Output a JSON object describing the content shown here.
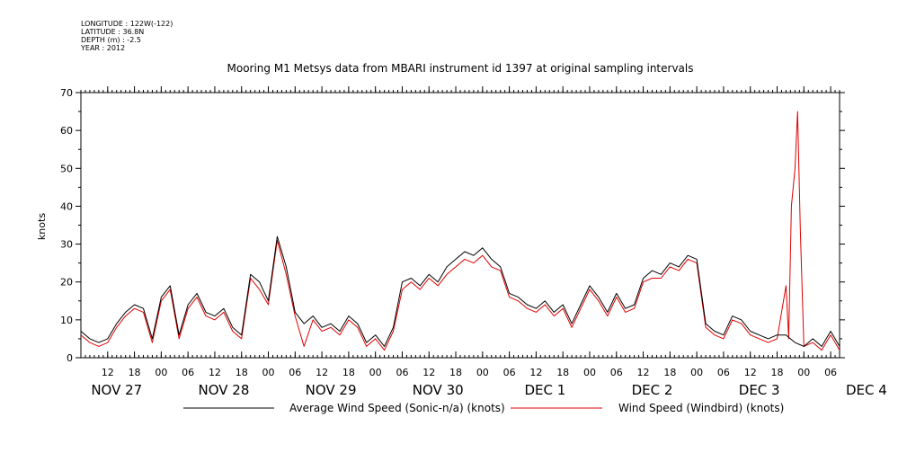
{
  "header": {
    "longitude": "LONGITUDE : 122W(-122)",
    "latitude": "LATITUDE : 36.8N",
    "depth": "DEPTH (m) : -2.5",
    "year": "YEAR : 2012"
  },
  "chart_data": {
    "type": "line",
    "title": "Mooring M1 Metsys data from MBARI instrument id 1397 at original sampling intervals",
    "ylabel": "knots",
    "xlabel": "",
    "ylim": [
      0,
      70
    ],
    "yticks": [
      0,
      10,
      20,
      30,
      40,
      50,
      60,
      70
    ],
    "xlim_hours": [
      0,
      170
    ],
    "x_hour_ticks": [
      "12",
      "18",
      "00",
      "06",
      "12",
      "18",
      "00",
      "06",
      "12",
      "18",
      "00",
      "06",
      "12",
      "18",
      "00",
      "06",
      "12",
      "18",
      "00",
      "06",
      "12",
      "18",
      "00",
      "06",
      "12",
      "18",
      "00",
      "06"
    ],
    "x_day_labels": [
      "NOV 27",
      "NOV 28",
      "NOV 29",
      "NOV 30",
      "DEC  1",
      "DEC  2",
      "DEC  3",
      "DEC  4"
    ],
    "grid": false,
    "legend_position": "bottom",
    "x_units": "hours since NOV 27 06:00",
    "series": [
      {
        "name": "Average Wind Speed (Sonic-n/a) (knots)",
        "color": "#000000",
        "x": [
          0,
          2,
          4,
          6,
          8,
          10,
          12,
          14,
          16,
          18,
          20,
          22,
          24,
          26,
          28,
          30,
          32,
          34,
          36,
          38,
          40,
          42,
          44,
          46,
          48,
          50,
          52,
          54,
          56,
          58,
          60,
          62,
          64,
          66,
          68,
          70,
          72,
          74,
          76,
          78,
          80,
          82,
          84,
          86,
          88,
          90,
          92,
          94,
          96,
          98,
          100,
          102,
          104,
          106,
          108,
          110,
          112,
          114,
          116,
          118,
          120,
          122,
          124,
          126,
          128,
          130,
          132,
          134,
          136,
          138,
          140,
          142,
          144,
          146,
          148,
          150,
          152,
          154,
          156,
          158,
          160,
          162,
          164,
          166,
          168,
          170
        ],
        "values": [
          7,
          5,
          4,
          5,
          9,
          12,
          14,
          13,
          5,
          16,
          19,
          6,
          14,
          17,
          12,
          11,
          13,
          8,
          6,
          22,
          20,
          15,
          32,
          24,
          12,
          9,
          11,
          8,
          9,
          7,
          11,
          9,
          4,
          6,
          3,
          8,
          20,
          21,
          19,
          22,
          20,
          24,
          26,
          28,
          27,
          29,
          26,
          24,
          17,
          16,
          14,
          13,
          15,
          12,
          14,
          9,
          14,
          19,
          16,
          12,
          17,
          13,
          14,
          21,
          23,
          22,
          25,
          24,
          27,
          26,
          9,
          7,
          6,
          11,
          10,
          7,
          6,
          5,
          6,
          6,
          4,
          3,
          5,
          3,
          7,
          3
        ]
      },
      {
        "name": "Wind Speed (Windbird) (knots)",
        "color": "#e00000",
        "x": [
          0,
          2,
          4,
          6,
          8,
          10,
          12,
          14,
          16,
          18,
          20,
          22,
          24,
          26,
          28,
          30,
          32,
          34,
          36,
          38,
          40,
          42,
          44,
          46,
          48,
          50,
          52,
          54,
          56,
          58,
          60,
          62,
          64,
          66,
          68,
          70,
          72,
          74,
          76,
          78,
          80,
          82,
          84,
          86,
          88,
          90,
          92,
          94,
          96,
          98,
          100,
          102,
          104,
          106,
          108,
          110,
          112,
          114,
          116,
          118,
          120,
          122,
          124,
          126,
          128,
          130,
          132,
          134,
          136,
          138,
          140,
          142,
          144,
          146,
          148,
          150,
          152,
          154,
          156,
          158,
          158.6,
          159.2,
          160,
          160.6,
          161.2,
          162,
          164,
          166,
          168,
          170
        ],
        "values": [
          6,
          4,
          3,
          4,
          8,
          11,
          13,
          12,
          4,
          15,
          18,
          5,
          13,
          16,
          11,
          10,
          12,
          7,
          5,
          21,
          18,
          14,
          31,
          22,
          11,
          3,
          10,
          7,
          8,
          6,
          10,
          8,
          3,
          5,
          2,
          7,
          18,
          20,
          18,
          21,
          19,
          22,
          24,
          26,
          25,
          27,
          24,
          23,
          16,
          15,
          13,
          12,
          14,
          11,
          13,
          8,
          13,
          18,
          15,
          11,
          16,
          12,
          13,
          20,
          21,
          21,
          24,
          23,
          26,
          25,
          8,
          6,
          5,
          10,
          9,
          6,
          5,
          4,
          5,
          19,
          5,
          40,
          50,
          65,
          34,
          3,
          4,
          2,
          6,
          2
        ]
      }
    ]
  }
}
